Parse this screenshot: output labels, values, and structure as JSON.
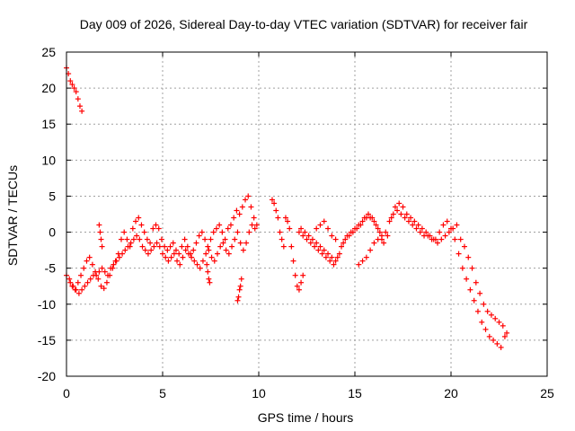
{
  "chart_data": {
    "type": "scatter",
    "title": "Day 009 of 2026, Sidereal Day-to-day VTEC variation (SDTVAR) for receiver fair",
    "xlabel": "GPS time / hours",
    "ylabel": "SDTVAR / TECUs",
    "xlim": [
      0,
      25
    ],
    "ylim": [
      -20,
      25
    ],
    "xticks": [
      "0",
      "5",
      "10",
      "15",
      "20",
      "25"
    ],
    "yticks": [
      "-20",
      "-15",
      "-10",
      "-5",
      "0",
      "5",
      "10",
      "15",
      "20",
      "25"
    ],
    "grid": true,
    "marker": "+",
    "marker_color": "#ff0000",
    "series": [
      {
        "name": "SDTVAR",
        "x": [
          0.0,
          0.1,
          0.2,
          0.3,
          0.4,
          0.5,
          0.6,
          0.7,
          0.8,
          0.0,
          0.15,
          0.3,
          0.45,
          0.6,
          0.75,
          0.9,
          1.05,
          1.2,
          1.35,
          1.5,
          1.65,
          1.8,
          1.95,
          2.1,
          2.25,
          2.4,
          2.55,
          2.7,
          2.85,
          3.0,
          3.15,
          3.3,
          3.45,
          3.6,
          3.75,
          3.9,
          4.05,
          4.2,
          4.35,
          4.5,
          4.65,
          4.8,
          4.95,
          5.1,
          5.25,
          5.4,
          5.55,
          5.7,
          5.85,
          6.0,
          6.15,
          6.3,
          6.45,
          6.6,
          6.75,
          6.9,
          7.05,
          7.2,
          7.35,
          7.5,
          7.65,
          7.8,
          7.95,
          8.1,
          8.25,
          8.4,
          8.55,
          8.7,
          8.85,
          9.0,
          9.15,
          9.3,
          9.45,
          9.6,
          9.75,
          9.9,
          0.2,
          0.35,
          0.5,
          0.65,
          0.8,
          0.95,
          1.1,
          1.25,
          1.4,
          1.55,
          1.7,
          1.85,
          2.0,
          2.15,
          2.3,
          2.45,
          2.6,
          2.75,
          2.9,
          3.05,
          3.2,
          3.35,
          3.5,
          3.65,
          3.8,
          3.95,
          4.1,
          4.25,
          4.4,
          4.55,
          4.7,
          4.85,
          5.0,
          5.15,
          5.3,
          5.45,
          5.6,
          5.75,
          5.9,
          6.05,
          6.2,
          6.35,
          6.5,
          6.65,
          6.8,
          6.95,
          7.1,
          7.25,
          7.4,
          7.55,
          7.7,
          7.85,
          8.0,
          8.15,
          8.3,
          8.45,
          8.6,
          8.75,
          8.9,
          9.05,
          9.2,
          9.35,
          9.5,
          9.65,
          9.8,
          1.7,
          1.75,
          1.8,
          1.85,
          7.3,
          7.35,
          7.4,
          7.45,
          8.9,
          8.95,
          9.0,
          9.05,
          9.1,
          10.7,
          10.8,
          10.9,
          11.0,
          11.1,
          11.2,
          11.3,
          11.4,
          11.5,
          11.6,
          11.7,
          11.8,
          11.9,
          12.0,
          12.1,
          12.2,
          12.3,
          12.1,
          12.3,
          12.5,
          12.7,
          12.9,
          13.1,
          13.3,
          13.5,
          13.7,
          13.9,
          14.1,
          14.3,
          14.5,
          14.7,
          14.9,
          15.1,
          15.3,
          15.5,
          15.7,
          15.9,
          16.1,
          16.3,
          16.5,
          16.7,
          16.9,
          17.1,
          17.3,
          17.5,
          17.7,
          17.9,
          18.1,
          18.3,
          18.5,
          18.7,
          18.9,
          19.1,
          19.3,
          19.5,
          19.7,
          19.9,
          20.1,
          20.3,
          20.5,
          20.7,
          20.9,
          21.1,
          21.3,
          21.5,
          21.7,
          21.9,
          22.1,
          22.3,
          22.5,
          22.7,
          22.9,
          12.2,
          12.4,
          12.6,
          12.8,
          13.0,
          13.2,
          13.4,
          13.6,
          13.8,
          14.0,
          14.2,
          14.4,
          14.6,
          14.8,
          15.0,
          15.2,
          15.4,
          15.6,
          15.8,
          16.0,
          16.2,
          16.4,
          16.6,
          16.8,
          17.0,
          17.2,
          17.4,
          17.6,
          17.8,
          18.0,
          18.2,
          18.4,
          18.6,
          18.8,
          19.0,
          19.2,
          19.4,
          19.6,
          19.8,
          20.0,
          20.2,
          20.4,
          20.6,
          20.8,
          21.0,
          21.2,
          21.4,
          21.6,
          21.8,
          22.0,
          22.2,
          22.4,
          22.6,
          22.8,
          13.0,
          13.2,
          13.4,
          13.6,
          13.8,
          14.0,
          15.2,
          15.4,
          15.6,
          15.8,
          16.0,
          16.2,
          16.4
        ],
        "y": [
          22.8,
          22.0,
          21.0,
          20.5,
          20.0,
          19.5,
          18.5,
          17.5,
          16.8,
          -6.0,
          -6.5,
          -7.5,
          -8.0,
          -7.0,
          -6.0,
          -5.0,
          -4.0,
          -3.5,
          -4.5,
          -5.5,
          -6.5,
          -7.5,
          -7.8,
          -7.0,
          -6.0,
          -5.0,
          -4.0,
          -3.0,
          -1.0,
          0.0,
          -1.0,
          -2.0,
          0.5,
          1.5,
          2.0,
          1.0,
          0.0,
          -1.0,
          -1.5,
          0.5,
          1.0,
          0.5,
          -1.0,
          -2.0,
          -2.5,
          -2.0,
          -1.5,
          -2.5,
          -3.0,
          -2.0,
          -1.0,
          -2.0,
          -3.0,
          -2.5,
          -1.5,
          -0.5,
          0.0,
          -1.0,
          -2.0,
          -1.0,
          0.0,
          0.5,
          1.0,
          0.0,
          -1.0,
          0.5,
          1.0,
          2.0,
          3.0,
          2.5,
          3.5,
          4.5,
          5.0,
          3.5,
          2.0,
          1.0,
          -7.0,
          -7.5,
          -8.0,
          -8.5,
          -8.0,
          -7.5,
          -7.0,
          -6.5,
          -6.0,
          -6.0,
          -5.5,
          -5.0,
          -5.5,
          -6.0,
          -5.0,
          -4.5,
          -4.0,
          -3.5,
          -3.0,
          -2.5,
          -2.0,
          -1.5,
          -1.0,
          -0.5,
          -1.0,
          -2.0,
          -2.5,
          -3.0,
          -2.5,
          -2.0,
          -1.5,
          -2.0,
          -3.0,
          -3.5,
          -4.0,
          -3.5,
          -3.0,
          -4.0,
          -4.5,
          -3.5,
          -2.5,
          -3.0,
          -3.5,
          -4.0,
          -4.5,
          -5.0,
          -4.0,
          -3.0,
          -2.5,
          -3.5,
          -4.0,
          -3.0,
          -2.0,
          -1.5,
          -2.5,
          -3.0,
          -2.0,
          -1.0,
          0.0,
          -1.5,
          -2.5,
          -1.5,
          0.0,
          1.0,
          0.5,
          1.0,
          0.0,
          -1.0,
          -2.0,
          -4.5,
          -5.5,
          -6.5,
          -7.0,
          -9.5,
          -9.0,
          -8.0,
          -7.5,
          -6.5,
          4.5,
          4.0,
          3.0,
          2.0,
          0.0,
          -1.0,
          -2.0,
          2.0,
          1.5,
          0.5,
          -2.0,
          -4.0,
          -6.0,
          -7.5,
          -8.0,
          -7.0,
          -6.0,
          0.0,
          -0.5,
          -1.0,
          -1.5,
          -2.0,
          -2.5,
          -3.0,
          -3.5,
          -4.0,
          -4.5,
          -3.5,
          -2.0,
          -1.0,
          -0.5,
          0.0,
          0.5,
          1.0,
          2.0,
          2.5,
          2.0,
          1.0,
          0.0,
          -1.5,
          -0.5,
          2.0,
          3.5,
          4.0,
          3.5,
          2.5,
          2.0,
          1.5,
          1.0,
          0.5,
          0.0,
          -0.5,
          -1.0,
          -1.5,
          -1.0,
          -0.5,
          0.0,
          0.5,
          1.0,
          -1.0,
          -2.0,
          -3.5,
          -5.0,
          -7.0,
          -8.5,
          -10.0,
          -11.0,
          -11.5,
          -12.0,
          -12.5,
          -13.0,
          -14.0,
          0.5,
          0.0,
          -0.5,
          -1.0,
          -1.5,
          -2.0,
          -2.5,
          -3.0,
          -3.5,
          -4.0,
          -3.0,
          -1.5,
          -0.5,
          0.0,
          0.5,
          1.0,
          1.5,
          2.0,
          2.0,
          1.5,
          0.5,
          -1.0,
          0.0,
          1.5,
          2.5,
          3.0,
          2.5,
          2.0,
          1.5,
          1.0,
          0.5,
          0.0,
          -0.5,
          -0.5,
          -1.0,
          -1.0,
          0.0,
          1.0,
          1.5,
          0.5,
          -1.0,
          -3.0,
          -5.0,
          -6.5,
          -8.0,
          -9.5,
          -11.0,
          -12.5,
          -13.5,
          -14.5,
          -15.0,
          -15.5,
          -16.0,
          -14.5,
          0.5,
          1.0,
          1.5,
          0.5,
          -0.5,
          -1.0,
          -4.5,
          -4.0,
          -3.5,
          -2.5,
          -1.5,
          -1.0,
          -0.5
        ]
      }
    ]
  }
}
